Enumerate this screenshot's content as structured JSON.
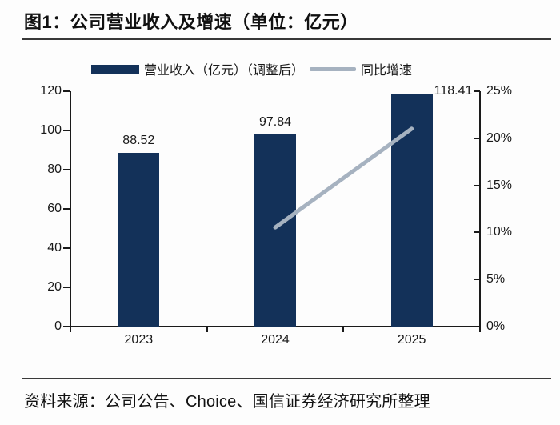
{
  "title": "图1：公司营业收入及增速（单位：亿元）",
  "source_note": "资料来源：公司公告、Choice、国信证券经济研究所整理",
  "colors": {
    "bar": "#133159",
    "line": "#a6b2c0",
    "axis": "#1a1a1a",
    "text": "#1a1a1a",
    "title_rule": "#383838",
    "background": "#fdfdfd"
  },
  "chart_data": {
    "type": "bar",
    "categories": [
      "2023",
      "2024",
      "2025"
    ],
    "series": [
      {
        "name": "营业收入（亿元）（调整后）",
        "type": "bar",
        "axis": "left",
        "color": "#133159",
        "values": [
          88.52,
          97.84,
          118.41
        ],
        "data_labels": [
          "88.52",
          "97.84",
          "118.41"
        ]
      },
      {
        "name": "同比增速",
        "type": "line",
        "axis": "right",
        "color": "#a6b2c0",
        "values": [
          null,
          10.53,
          21.02
        ]
      }
    ],
    "left_axis": {
      "min": 0,
      "max": 120,
      "step": 20,
      "tick_labels": [
        "0",
        "20",
        "40",
        "60",
        "80",
        "100",
        "120"
      ]
    },
    "right_axis": {
      "min": 0,
      "max": 25,
      "step": 5,
      "tick_labels": [
        "0%",
        "5%",
        "10%",
        "15%",
        "20%",
        "25%"
      ]
    },
    "legend_position": "top",
    "grid": false
  }
}
